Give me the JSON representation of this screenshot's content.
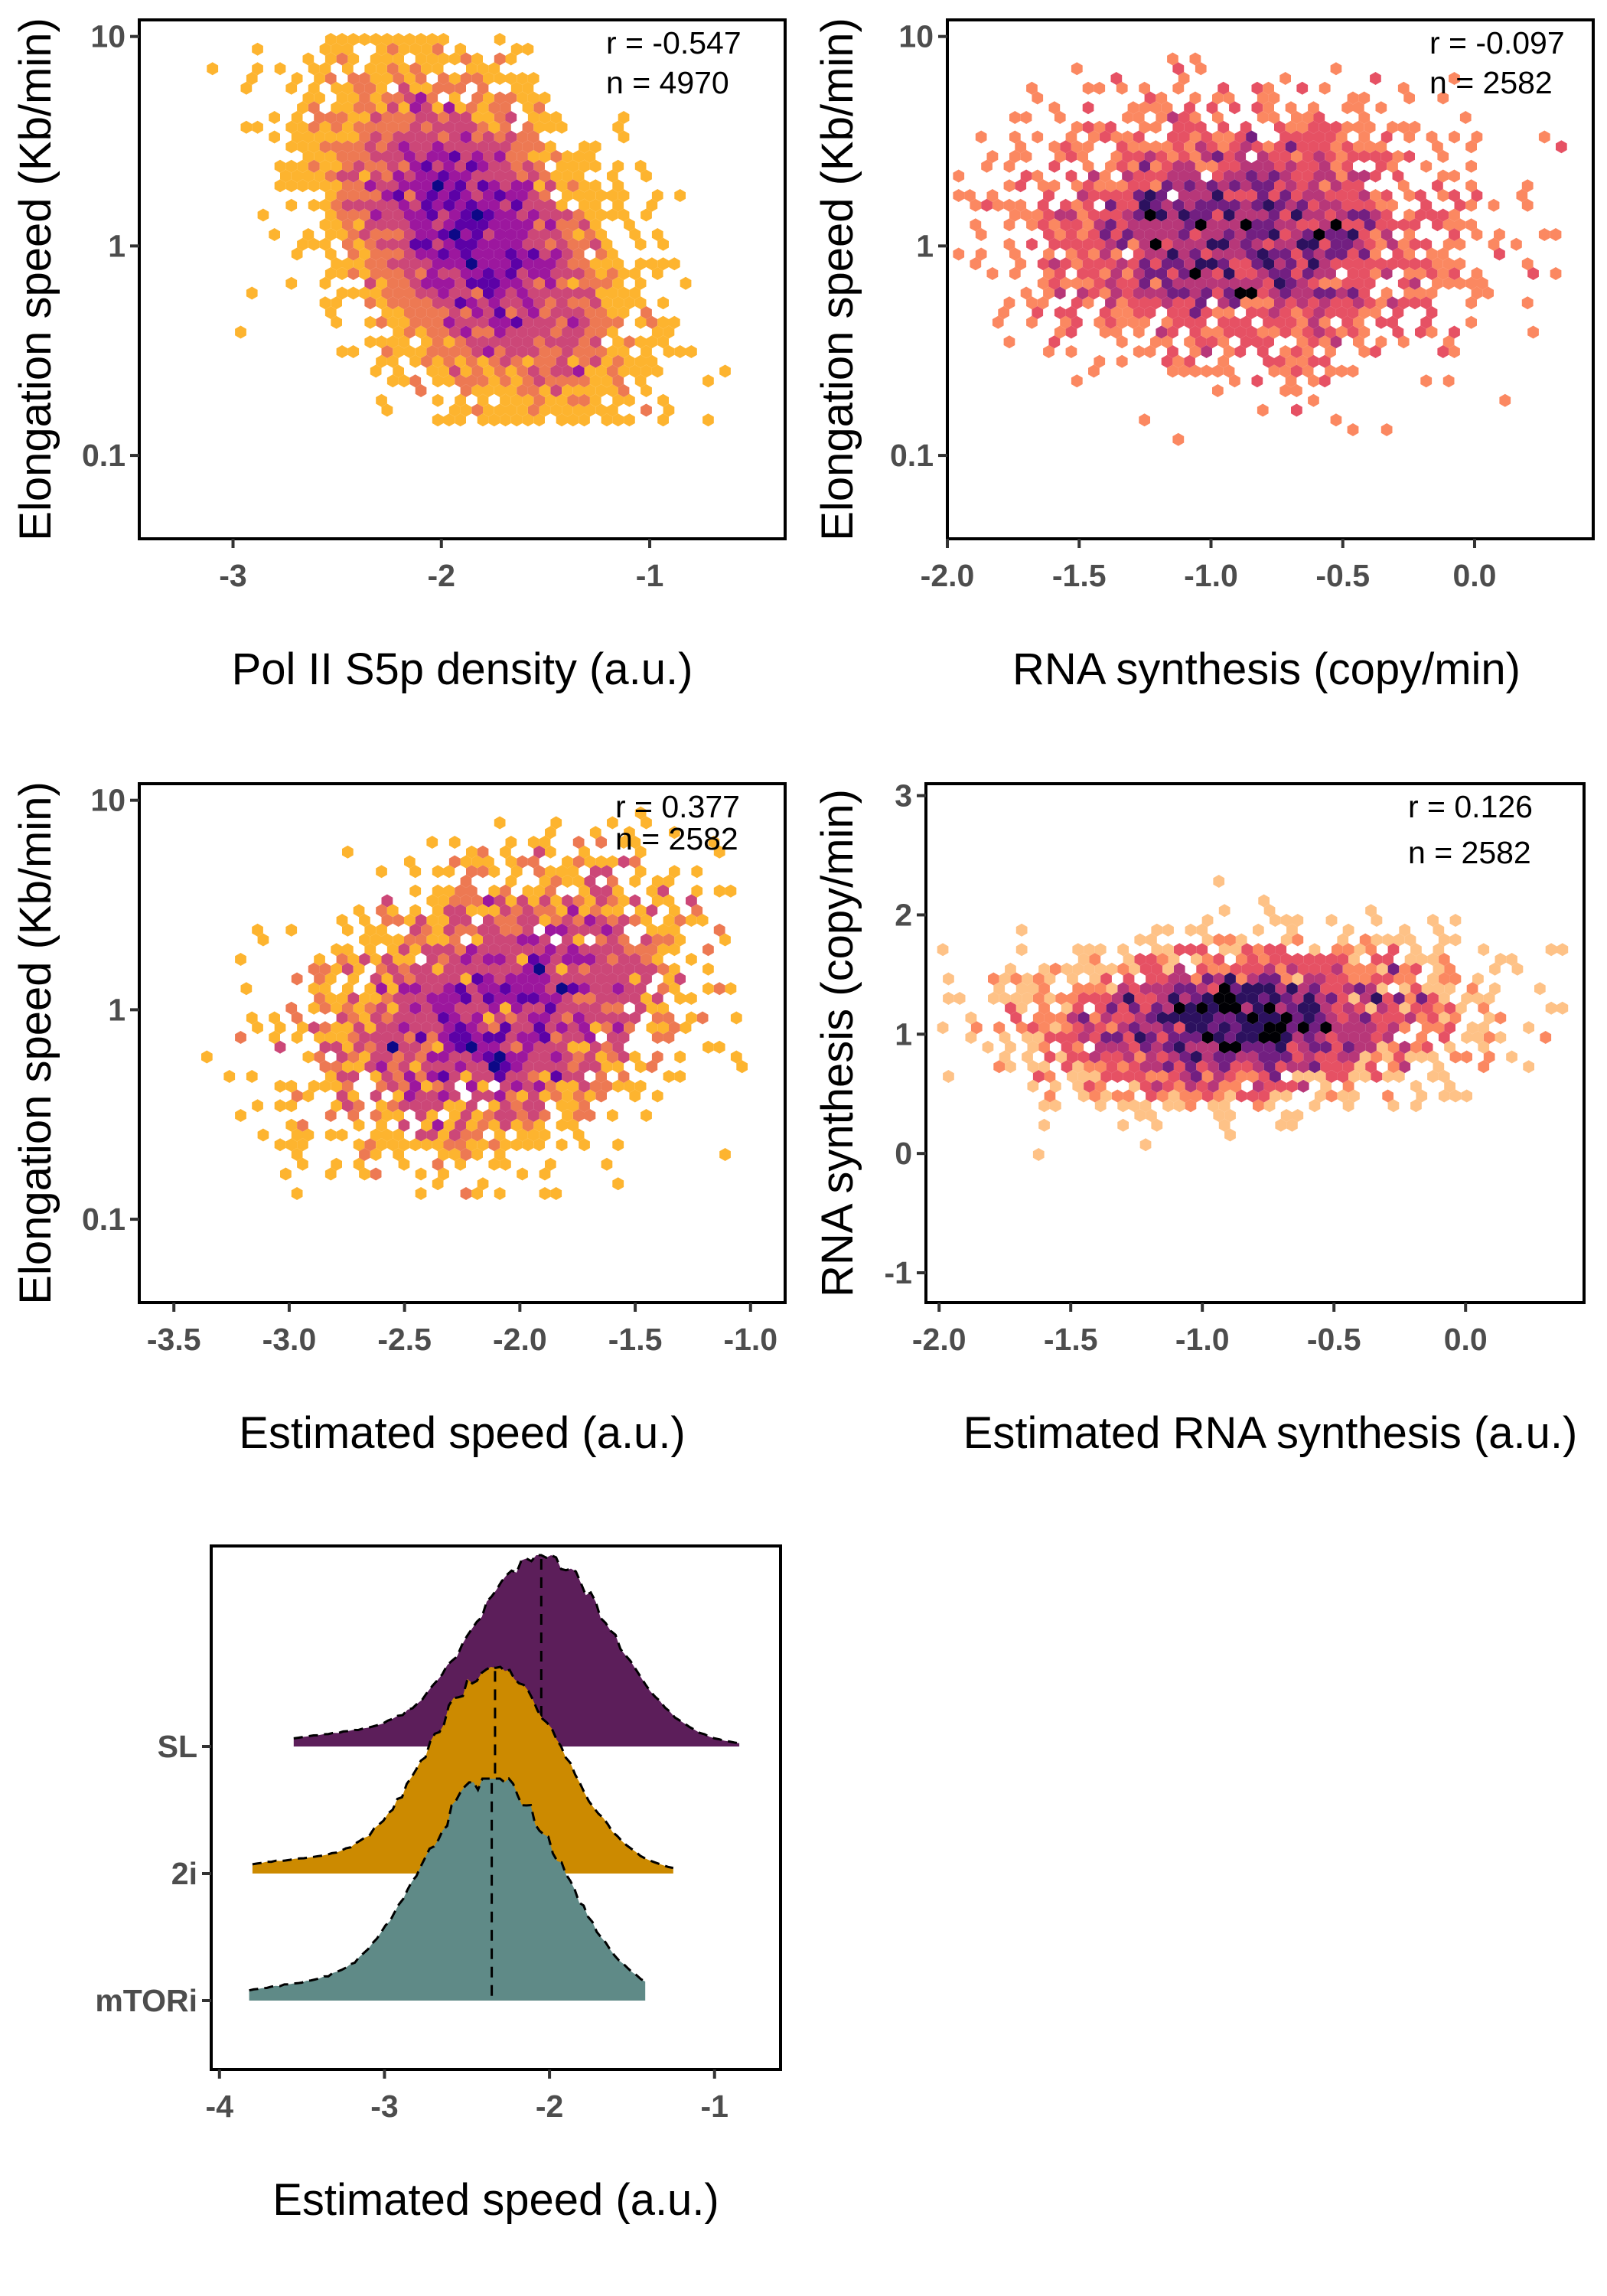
{
  "colors": {
    "plasma": [
      "#f0f921",
      "#fdb42f",
      "#ed7953",
      "#cc4778",
      "#9c179e",
      "#5c01a6",
      "#0d0887"
    ],
    "magma": [
      "#fcfdbf",
      "#fec287",
      "#fb8861",
      "#e65164",
      "#b73779",
      "#721f81",
      "#2c115f",
      "#000004"
    ],
    "ridge": {
      "SL": "#5c1e5a",
      "2i": "#cc8a00",
      "mTORi": "#5f8a87"
    }
  },
  "chart_data": [
    {
      "type": "heatmap",
      "subtype": "hexbin",
      "palette": "plasma",
      "xlabel": "Pol II S5p density (a.u.)",
      "ylabel": "Elongation speed (Kb/min)",
      "y_scale": "log10",
      "xlim": [
        -3.45,
        -0.35
      ],
      "ylim": [
        0.04,
        12
      ],
      "xticks": [
        -3,
        -2,
        -1
      ],
      "xtick_labels": [
        "-3",
        "-2",
        "-1"
      ],
      "yticks": [
        0.1,
        1,
        10
      ],
      "ytick_labels": [
        "0.1",
        "1",
        "10"
      ],
      "stats": {
        "r": "r = -0.547",
        "n": "n = 4970"
      },
      "center": {
        "x": -1.85,
        "log10_y": 0.05
      },
      "spread": {
        "x": 0.35,
        "log10_y": 0.38
      },
      "slope": -0.55,
      "extent": {
        "x": [
          -3.3,
          -0.55
        ],
        "log10_y": [
          -0.85,
          1.0
        ]
      },
      "n_points": 4970,
      "grid": false
    },
    {
      "type": "heatmap",
      "subtype": "hexbin",
      "palette": "magma",
      "xlabel": "RNA synthesis (copy/min)",
      "ylabel": "Elongation speed (Kb/min)",
      "y_scale": "log10",
      "xlim": [
        -2.0,
        0.45
      ],
      "ylim": [
        0.04,
        12
      ],
      "xticks": [
        -2.0,
        -1.5,
        -1.0,
        -0.5,
        0.0
      ],
      "xtick_labels": [
        "-2.0",
        "-1.5",
        "-1.0",
        "-0.5",
        "0.0"
      ],
      "yticks": [
        0.1,
        1,
        10
      ],
      "ytick_labels": [
        "0.1",
        "1",
        "10"
      ],
      "stats": {
        "r": "r = -0.097",
        "n": "n = 2582"
      },
      "center": {
        "x": -0.9,
        "log10_y": 0.05
      },
      "spread": {
        "x": 0.4,
        "log10_y": 0.3
      },
      "slope": -0.05,
      "extent": {
        "x": [
          -1.95,
          0.4
        ],
        "log10_y": [
          -1.0,
          0.9
        ]
      },
      "n_points": 2582,
      "grid": false
    },
    {
      "type": "heatmap",
      "subtype": "hexbin",
      "palette": "plasma",
      "xlabel": "Estimated speed (a.u.)",
      "ylabel": "Elongation speed (Kb/min)",
      "y_scale": "log10",
      "xlim": [
        -3.65,
        -0.85
      ],
      "ylim": [
        0.04,
        12
      ],
      "xticks": [
        -3.5,
        -3.0,
        -2.5,
        -2.0,
        -1.5,
        -1.0
      ],
      "xtick_labels": [
        "-3.5",
        "-3.0",
        "-2.5",
        "-2.0",
        "-1.5",
        "-1.0"
      ],
      "yticks": [
        0.1,
        1,
        10
      ],
      "ytick_labels": [
        "0.1",
        "1",
        "10"
      ],
      "stats": {
        "r": "r = 0.377",
        "n": "n = 2582"
      },
      "center": {
        "x": -2.1,
        "log10_y": 0.0
      },
      "spread": {
        "x": 0.4,
        "log10_y": 0.33
      },
      "slope": 0.3,
      "extent": {
        "x": [
          -3.4,
          -1.05
        ],
        "log10_y": [
          -0.9,
          0.95
        ]
      },
      "n_points": 2582,
      "grid": false
    },
    {
      "type": "heatmap",
      "subtype": "hexbin",
      "palette": "magma",
      "xlabel": "Estimated RNA synthesis (a.u.)",
      "ylabel": "RNA synthesis (copy/min)",
      "y_scale": "linear",
      "xlim": [
        -2.05,
        0.45
      ],
      "ylim": [
        -1.25,
        3.1
      ],
      "xticks": [
        -2.0,
        -1.5,
        -1.0,
        -0.5,
        0.0
      ],
      "xtick_labels": [
        "-2.0",
        "-1.5",
        "-1.0",
        "-0.5",
        "0.0"
      ],
      "yticks": [
        -1,
        0,
        1,
        2,
        3
      ],
      "ytick_labels": [
        "-1",
        "0",
        "1",
        "2",
        "3"
      ],
      "stats": {
        "r": "r = 0.126",
        "n": "n = 2582"
      },
      "center": {
        "x": -0.85,
        "y": 1.1
      },
      "spread": {
        "x": 0.4,
        "y": 0.32
      },
      "slope": 0.1,
      "extent": {
        "x": [
          -2.0,
          0.4
        ],
        "y": [
          -0.15,
          2.7
        ]
      },
      "n_points": 2582,
      "grid": false
    },
    {
      "type": "area",
      "subtype": "ridgeline",
      "xlabel": "Estimated speed (a.u.)",
      "ylabel": "",
      "xlim": [
        -4.05,
        -0.6
      ],
      "xticks": [
        -4,
        -3,
        -2,
        -1
      ],
      "xtick_labels": [
        "-4",
        "-3",
        "-2",
        "-1"
      ],
      "categories": [
        "SL",
        "2i",
        "mTORi"
      ],
      "series": [
        {
          "name": "SL",
          "mean": -2.05,
          "sd": 0.42,
          "range": [
            -3.55,
            -0.85
          ],
          "color": "#5c1e5a"
        },
        {
          "name": "2i",
          "mean": -2.33,
          "sd": 0.4,
          "range": [
            -3.8,
            -1.25
          ],
          "color": "#cc8a00"
        },
        {
          "name": "mTORi",
          "mean": -2.35,
          "sd": 0.42,
          "range": [
            -3.82,
            -1.42
          ],
          "color": "#5f8a87"
        }
      ],
      "grid": false
    }
  ]
}
